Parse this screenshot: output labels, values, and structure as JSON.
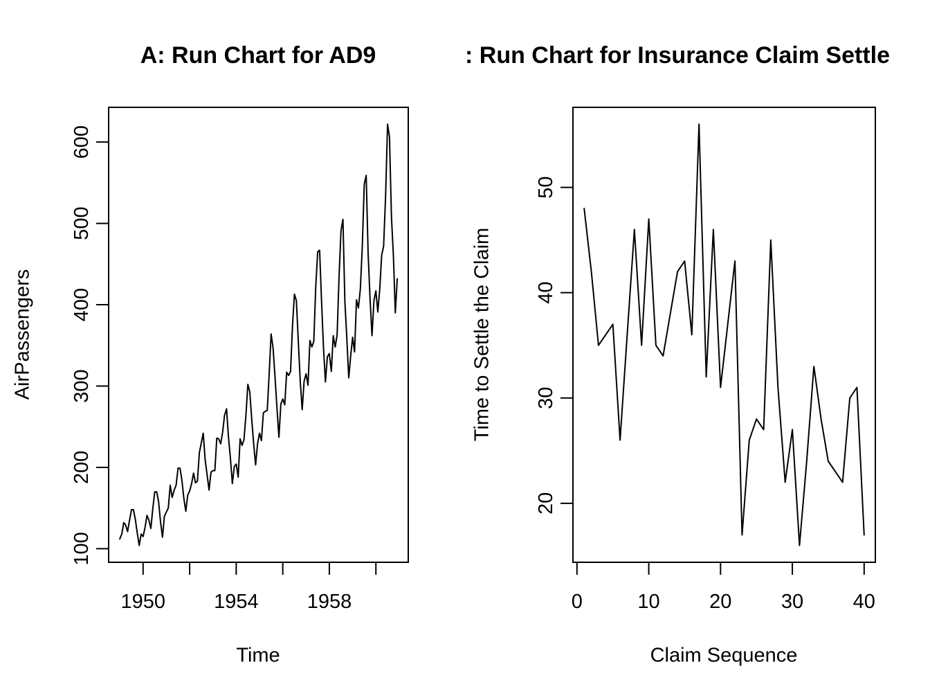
{
  "figure": {
    "background_color": "#ffffff",
    "line_color": "#000000",
    "text_color": "#000000"
  },
  "chart_data": [
    {
      "type": "line",
      "title": "A: Run Chart for AD9",
      "xlabel": "Time",
      "ylabel": "AirPassengers",
      "x_start": 1949,
      "x_frequency": 12,
      "values": [
        112,
        118,
        132,
        129,
        121,
        135,
        148,
        148,
        136,
        119,
        104,
        118,
        115,
        126,
        141,
        135,
        125,
        149,
        170,
        170,
        158,
        133,
        114,
        140,
        145,
        150,
        178,
        163,
        172,
        178,
        199,
        199,
        184,
        162,
        146,
        166,
        171,
        180,
        193,
        181,
        183,
        218,
        230,
        242,
        209,
        191,
        172,
        194,
        196,
        196,
        236,
        235,
        229,
        243,
        264,
        272,
        237,
        211,
        180,
        201,
        204,
        188,
        235,
        227,
        234,
        264,
        302,
        293,
        259,
        229,
        203,
        229,
        242,
        233,
        267,
        269,
        270,
        315,
        364,
        347,
        312,
        274,
        237,
        278,
        284,
        277,
        317,
        313,
        318,
        374,
        413,
        405,
        355,
        306,
        271,
        306,
        315,
        301,
        356,
        348,
        355,
        422,
        465,
        467,
        404,
        347,
        305,
        336,
        340,
        318,
        362,
        348,
        363,
        435,
        491,
        505,
        404,
        359,
        310,
        337,
        360,
        342,
        406,
        396,
        420,
        472,
        548,
        559,
        463,
        407,
        362,
        405,
        417,
        391,
        419,
        461,
        472,
        535,
        622,
        606,
        508,
        461,
        390,
        432
      ],
      "xlim": [
        1948.52,
        1961.39
      ],
      "ylim": [
        83.3,
        642.7
      ],
      "x_ticks": {
        "values": [
          1950,
          1952,
          1954,
          1956,
          1958,
          1960
        ],
        "labels": [
          "1950",
          "",
          "1954",
          "",
          "1958",
          ""
        ]
      },
      "y_ticks": {
        "values": [
          100,
          200,
          300,
          400,
          500,
          600
        ],
        "labels": [
          "100",
          "200",
          "300",
          "400",
          "500",
          "600"
        ]
      },
      "grid": false,
      "legend": "none"
    },
    {
      "type": "line",
      "title": ": Run Chart for Insurance Claim Settle",
      "xlabel": "Claim Sequence",
      "ylabel": "Time to Settle the Claim",
      "x": [
        1,
        2,
        3,
        4,
        5,
        6,
        7,
        8,
        9,
        10,
        11,
        12,
        13,
        14,
        15,
        16,
        17,
        18,
        19,
        20,
        21,
        22,
        23,
        24,
        25,
        26,
        27,
        28,
        29,
        30,
        31,
        32,
        33,
        34,
        35,
        36,
        37,
        38,
        39,
        40
      ],
      "values": [
        48,
        42,
        35,
        36,
        37,
        26,
        36,
        46,
        35,
        47,
        35,
        34,
        38,
        42,
        43,
        36,
        56,
        32,
        46,
        31,
        37,
        43,
        17,
        26,
        28,
        27,
        45,
        31,
        22,
        27,
        16,
        24,
        33,
        28,
        24,
        23,
        22,
        30,
        31,
        17
      ],
      "xlim": [
        -0.56,
        41.56
      ],
      "ylim": [
        14.4,
        57.6
      ],
      "x_ticks": {
        "values": [
          0,
          10,
          20,
          30,
          40
        ],
        "labels": [
          "0",
          "10",
          "20",
          "30",
          "40"
        ]
      },
      "y_ticks": {
        "values": [
          20,
          30,
          40,
          50
        ],
        "labels": [
          "20",
          "30",
          "40",
          "50"
        ]
      },
      "grid": false,
      "legend": "none"
    }
  ]
}
